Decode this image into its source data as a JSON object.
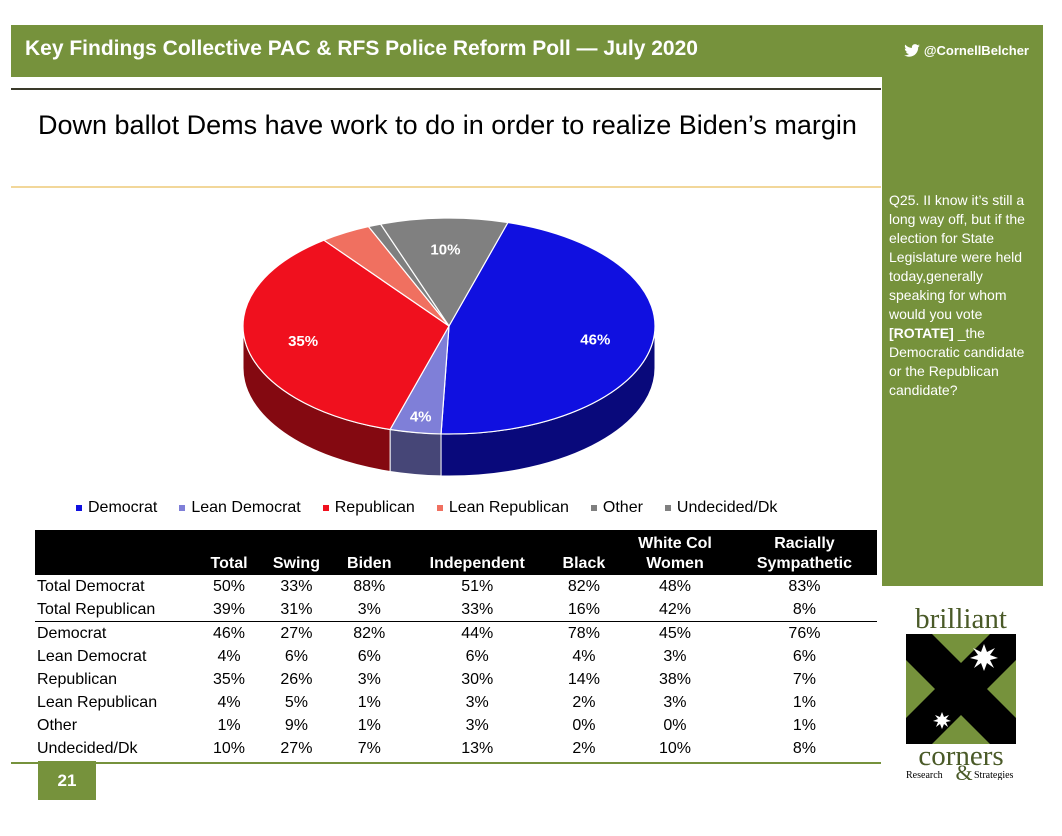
{
  "header": {
    "title": "Key Findings Collective PAC & RFS Police Reform Poll — July 2020",
    "handle": "@CornellBelcher"
  },
  "slide": {
    "title": "Down ballot Dems have work to do in order to realize Biden’s margin",
    "page_number": "21"
  },
  "sidebar": {
    "question_part1": "Q25. II know it’s still a long way off, but if the election for State Legislature were held today,generally speaking for whom would you vote ",
    "question_bold": "[ROTATE]",
    "question_part2": " _the Democratic candidate or the Republican candidate?"
  },
  "chart_data": {
    "type": "pie",
    "categories": [
      "Democrat",
      "Lean Democrat",
      "Republican",
      "Lean Republican",
      "Other",
      "Undecided/Dk"
    ],
    "values": [
      46,
      4,
      35,
      4,
      1,
      10
    ],
    "data_labels": [
      "46%",
      "4%",
      "35%",
      "",
      "",
      "10%"
    ],
    "colors": [
      "#1010e0",
      "#7f7fd8",
      "#f0101e",
      "#f07060",
      "#7f7f7f",
      "#808080"
    ],
    "legend_position": "bottom"
  },
  "table": {
    "columns": [
      "",
      "Total",
      "Swing",
      "Biden",
      "Independent",
      "Black",
      "White Col\nWomen",
      "Racially\nSympathetic"
    ],
    "rows": [
      {
        "label": "Total Democrat",
        "values": [
          "50%",
          "33%",
          "88%",
          "51%",
          "82%",
          "48%",
          "83%"
        ]
      },
      {
        "label": "Total Republican",
        "values": [
          "39%",
          "31%",
          "3%",
          "33%",
          "16%",
          "42%",
          "8%"
        ]
      },
      {
        "label": "Democrat",
        "values": [
          "46%",
          "27%",
          "82%",
          "44%",
          "78%",
          "45%",
          "76%"
        ]
      },
      {
        "label": "Lean Democrat",
        "values": [
          "4%",
          "6%",
          "6%",
          "6%",
          "4%",
          "3%",
          "6%"
        ]
      },
      {
        "label": "Republican",
        "values": [
          "35%",
          "26%",
          "3%",
          "30%",
          "14%",
          "38%",
          "7%"
        ]
      },
      {
        "label": "Lean Republican",
        "values": [
          "4%",
          "5%",
          "1%",
          "3%",
          "2%",
          "3%",
          "1%"
        ]
      },
      {
        "label": "Other",
        "values": [
          "1%",
          "9%",
          "1%",
          "3%",
          "0%",
          "0%",
          "1%"
        ]
      },
      {
        "label": "Undecided/Dk",
        "values": [
          "10%",
          "27%",
          "7%",
          "13%",
          "2%",
          "10%",
          "8%"
        ]
      }
    ]
  },
  "logo": {
    "line1": "brilliant",
    "line2": "corners",
    "line3": "Research",
    "line4": "&",
    "line5": "Strategies",
    "bg_color": "#76923c"
  }
}
